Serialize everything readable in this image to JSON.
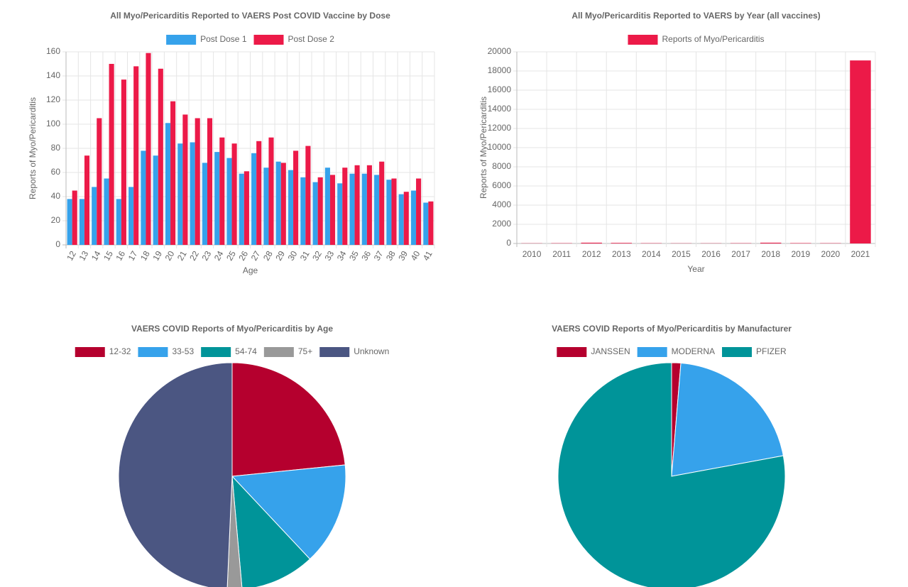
{
  "chart_data": [
    {
      "type": "bar",
      "title": "All Myo/Pericarditis Reported to VAERS Post COVID Vaccine by Dose",
      "x_label": "Age",
      "y_label": "Reports of Myo/Pericarditis",
      "categories": [
        "12",
        "13",
        "14",
        "15",
        "16",
        "17",
        "18",
        "19",
        "20",
        "21",
        "22",
        "23",
        "24",
        "25",
        "26",
        "27",
        "28",
        "29",
        "30",
        "31",
        "32",
        "33",
        "34",
        "35",
        "36",
        "37",
        "38",
        "39",
        "40",
        "41"
      ],
      "series": [
        {
          "name": "Post Dose 1",
          "color": "#36a2eb",
          "values": [
            38,
            38,
            48,
            55,
            38,
            48,
            78,
            74,
            101,
            84,
            85,
            68,
            77,
            72,
            59,
            76,
            64,
            69,
            62,
            56,
            52,
            64,
            51,
            59,
            59,
            58,
            54,
            42,
            45,
            35
          ]
        },
        {
          "name": "Post Dose 2",
          "color": "#ec1a48",
          "values": [
            45,
            74,
            105,
            150,
            137,
            148,
            159,
            146,
            119,
            108,
            105,
            105,
            89,
            84,
            61,
            86,
            89,
            68,
            78,
            82,
            56,
            58,
            64,
            66,
            66,
            69,
            55,
            44,
            55,
            36
          ]
        }
      ],
      "ylim": [
        0,
        160
      ],
      "yticks": [
        0,
        20,
        40,
        60,
        80,
        100,
        120,
        140,
        160
      ],
      "grid": true
    },
    {
      "type": "bar",
      "title": "All Myo/Pericarditis Reported to VAERS by Year (all vaccines)",
      "x_label": "Year",
      "y_label": "Reports of Myo/Pericarditis",
      "categories": [
        "2010",
        "2011",
        "2012",
        "2013",
        "2014",
        "2015",
        "2016",
        "2017",
        "2018",
        "2019",
        "2020",
        "2021"
      ],
      "series": [
        {
          "name": "Reports of Myo/Pericarditis",
          "color": "#ec1a48",
          "values": [
            20,
            30,
            80,
            60,
            30,
            20,
            20,
            30,
            80,
            40,
            30,
            19100
          ]
        }
      ],
      "ylim": [
        0,
        20000
      ],
      "yticks": [
        0,
        2000,
        4000,
        6000,
        8000,
        10000,
        12000,
        14000,
        16000,
        18000,
        20000
      ],
      "grid": true
    },
    {
      "type": "pie",
      "title": "VAERS COVID Reports of Myo/Pericarditis by Age",
      "categories": [
        "12-32",
        "33-53",
        "54-74",
        "75+",
        "Unknown"
      ],
      "values": [
        23.4,
        14.6,
        10.6,
        2.1,
        49.3
      ],
      "colors": [
        "#b5002e",
        "#36a2eb",
        "#009499",
        "#999999",
        "#4b5682"
      ]
    },
    {
      "type": "pie",
      "title": "VAERS COVID Reports of Myo/Pericarditis by Manufacturer",
      "categories": [
        "JANSSEN",
        "MODERNA",
        "PFIZER"
      ],
      "values": [
        1.3,
        20.8,
        77.9
      ],
      "colors": [
        "#b5002e",
        "#36a2eb",
        "#009499"
      ]
    }
  ]
}
